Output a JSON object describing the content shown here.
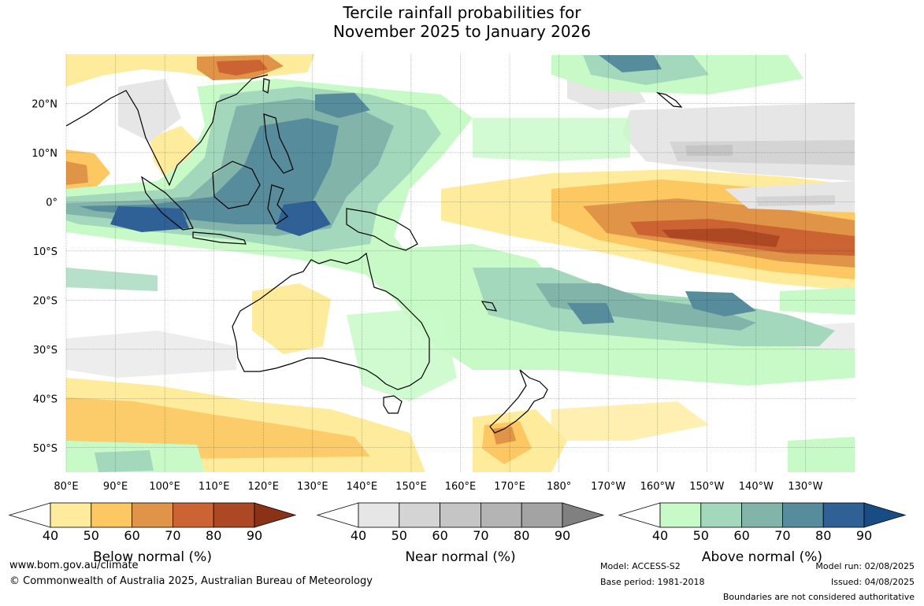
{
  "title": {
    "line1": "Tercile rainfall probabilities for",
    "line2": "November 2025 to January 2026"
  },
  "map": {
    "region": "Indo-Pacific",
    "lon_range": [
      80,
      240
    ],
    "lat_range": [
      -55,
      30
    ],
    "lon_ticks": [
      {
        "lon": 80,
        "label": "80°E"
      },
      {
        "lon": 90,
        "label": "90°E"
      },
      {
        "lon": 100,
        "label": "100°E"
      },
      {
        "lon": 110,
        "label": "110°E"
      },
      {
        "lon": 120,
        "label": "120°E"
      },
      {
        "lon": 130,
        "label": "130°E"
      },
      {
        "lon": 140,
        "label": "140°E"
      },
      {
        "lon": 150,
        "label": "150°E"
      },
      {
        "lon": 160,
        "label": "160°E"
      },
      {
        "lon": 170,
        "label": "170°E"
      },
      {
        "lon": 180,
        "label": "180°"
      },
      {
        "lon": 190,
        "label": "170°W"
      },
      {
        "lon": 200,
        "label": "160°W"
      },
      {
        "lon": 210,
        "label": "150°W"
      },
      {
        "lon": 220,
        "label": "140°W"
      },
      {
        "lon": 230,
        "label": "130°W"
      }
    ],
    "lat_ticks": [
      {
        "lat": 20,
        "label": "20°N"
      },
      {
        "lat": 10,
        "label": "10°N"
      },
      {
        "lat": 0,
        "label": "0°"
      },
      {
        "lat": -10,
        "label": "10°S"
      },
      {
        "lat": -20,
        "label": "20°S"
      },
      {
        "lat": -30,
        "label": "30°S"
      },
      {
        "lat": -40,
        "label": "40°S"
      },
      {
        "lat": -50,
        "label": "50°S"
      }
    ],
    "grid": true
  },
  "legends": [
    {
      "id": "below",
      "title": "Below normal (%)",
      "ticks": [
        "40",
        "50",
        "60",
        "70",
        "80",
        "90"
      ],
      "colors": [
        "#ffffff",
        "#ffeb9c",
        "#fdc762",
        "#e09447",
        "#cc6332",
        "#ac4824",
        "#8a3218"
      ]
    },
    {
      "id": "near",
      "title": "Near normal (%)",
      "ticks": [
        "40",
        "50",
        "60",
        "70",
        "80",
        "90"
      ],
      "colors": [
        "#ffffff",
        "#e6e6e6",
        "#d4d4d4",
        "#c5c5c5",
        "#b4b4b4",
        "#a3a3a3",
        "#808080"
      ]
    },
    {
      "id": "above",
      "title": "Above normal (%)",
      "ticks": [
        "40",
        "50",
        "60",
        "70",
        "80",
        "90"
      ],
      "colors": [
        "#ffffff",
        "#c8fac8",
        "#a4d8bc",
        "#82b4aa",
        "#568c9c",
        "#2f6096",
        "#174c84"
      ]
    }
  ],
  "footer": {
    "website": "www.bom.gov.au/climate",
    "copyright": "© Commonwealth of Australia 2025, Australian Bureau of Meteorology",
    "model": "Model: ACCESS-S2",
    "base_period": "Base period: 1981-2018",
    "model_run": "Model run: 02/08/2025",
    "issued": "Issued: 04/08/2025",
    "disclaimer": "Boundaries are not considered authoritative"
  }
}
